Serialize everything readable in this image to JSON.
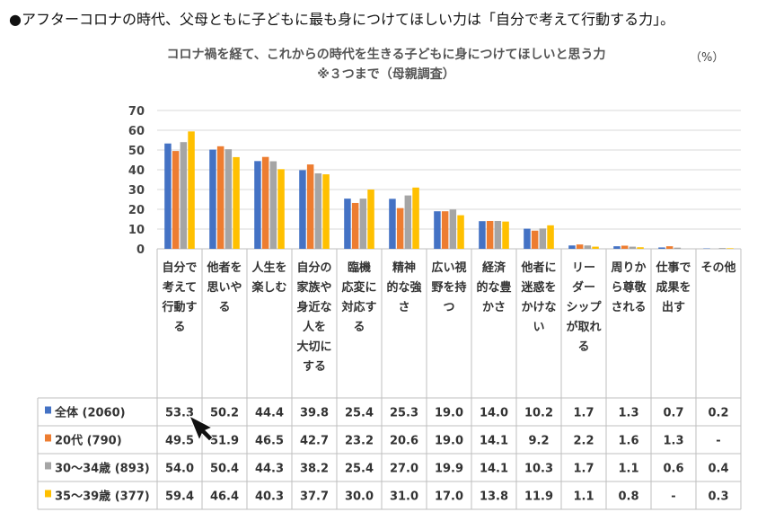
{
  "headline": "●アフターコロナの時代、父母ともに子どもに最も身につけてほしい力は「自分で考えて行動する力」。",
  "chart_data": {
    "type": "bar",
    "title": "コロナ禍を経て、これからの時代を生きる子どもに身につけてほしいと思う力",
    "subtitle": "※３つまで（母親調査）",
    "unit": "（%）",
    "ylim": [
      0,
      70
    ],
    "yticks": [
      0,
      10,
      20,
      30,
      40,
      50,
      60,
      70
    ],
    "grid": true,
    "categories": [
      [
        "自分で",
        "考えて",
        "行動す",
        "る"
      ],
      [
        "他者を",
        "思いや",
        "る"
      ],
      [
        "人生を",
        "楽しむ"
      ],
      [
        "自分の",
        "家族や",
        "身近な",
        "人を",
        "大切に",
        "する"
      ],
      [
        "臨機",
        "応変に",
        "対応す",
        "る"
      ],
      [
        "精神",
        "的な強",
        "さ"
      ],
      [
        "広い視",
        "野を持",
        "つ"
      ],
      [
        "経済",
        "的な豊",
        "かさ"
      ],
      [
        "他者に",
        "迷惑を",
        "かけな",
        "い"
      ],
      [
        "リー",
        "ダー",
        "シップ",
        "が取れ",
        "る"
      ],
      [
        "周りか",
        "ら尊敬",
        "される"
      ],
      [
        "仕事で",
        "成果を",
        "出す"
      ],
      [
        "その他"
      ]
    ],
    "series": [
      {
        "name": "全体 (2060)",
        "color": "#4472c4",
        "values": [
          53.3,
          50.2,
          44.4,
          39.8,
          25.4,
          25.3,
          19.0,
          14.0,
          10.2,
          1.7,
          1.3,
          0.7,
          0.2
        ],
        "labels": [
          "53.3",
          "50.2",
          "44.4",
          "39.8",
          "25.4",
          "25.3",
          "19.0",
          "14.0",
          "10.2",
          "1.7",
          "1.3",
          "0.7",
          "0.2"
        ]
      },
      {
        "name": "20代 (790)",
        "color": "#ed7d31",
        "values": [
          49.5,
          51.9,
          46.5,
          42.7,
          23.2,
          20.6,
          19.0,
          14.1,
          9.2,
          2.2,
          1.6,
          1.3,
          0
        ],
        "labels": [
          "49.5",
          "51.9",
          "46.5",
          "42.7",
          "23.2",
          "20.6",
          "19.0",
          "14.1",
          "9.2",
          "2.2",
          "1.6",
          "1.3",
          "-"
        ]
      },
      {
        "name": "30～34歳 (893)",
        "color": "#a5a5a5",
        "values": [
          54.0,
          50.4,
          44.3,
          38.2,
          25.4,
          27.0,
          19.9,
          14.1,
          10.3,
          1.7,
          1.1,
          0.6,
          0.4
        ],
        "labels": [
          "54.0",
          "50.4",
          "44.3",
          "38.2",
          "25.4",
          "27.0",
          "19.9",
          "14.1",
          "10.3",
          "1.7",
          "1.1",
          "0.6",
          "0.4"
        ]
      },
      {
        "name": "35～39歳 (377)",
        "color": "#ffc000",
        "values": [
          59.4,
          46.4,
          40.3,
          37.7,
          30.0,
          31.0,
          17.0,
          13.8,
          11.9,
          1.1,
          0.8,
          0,
          0.3
        ],
        "labels": [
          "59.4",
          "46.4",
          "40.3",
          "37.7",
          "30.0",
          "31.0",
          "17.0",
          "13.8",
          "11.9",
          "1.1",
          "0.8",
          "-",
          "0.3"
        ]
      }
    ]
  }
}
